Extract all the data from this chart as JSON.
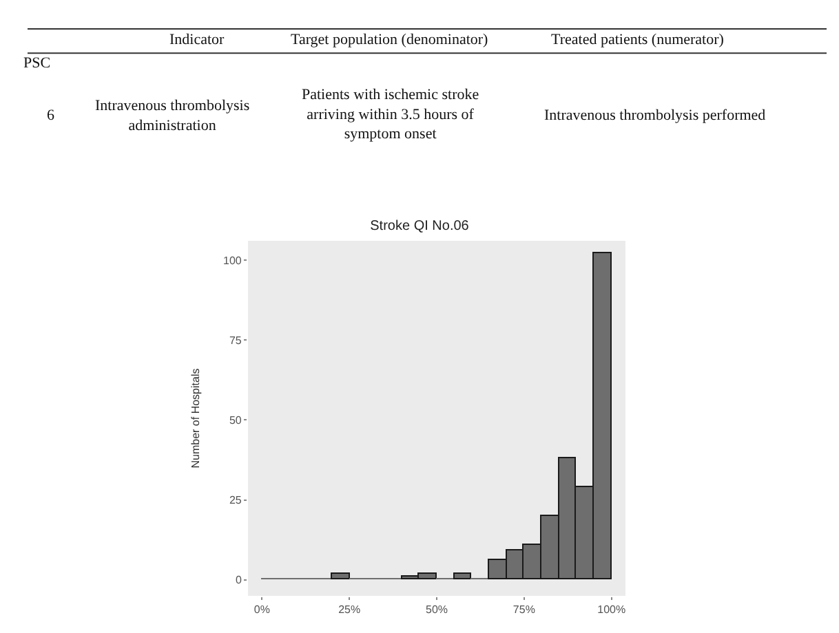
{
  "chart_data": {
    "type": "histogram",
    "title": "Stroke QI No.06",
    "ylabel": "Number of Hospitals",
    "annotations": [
      "Indicator",
      "Target population (denominator)",
      "Treated patients (numerator)",
      "PSC",
      "6",
      "Intravenous thrombolysis administration",
      "Patients with ischemic stroke arriving within 3.5 hours of symptom onset",
      "Intravenous thrombolysis performed"
    ],
    "bins": [
      0,
      5,
      10,
      15,
      20,
      25,
      30,
      35,
      40,
      45,
      50,
      55,
      60,
      65,
      70,
      75,
      80,
      85,
      90,
      95,
      100
    ],
    "values": [
      0,
      0,
      0,
      0,
      2,
      0,
      0,
      0,
      1,
      2,
      0,
      2,
      0,
      6,
      9,
      11,
      20,
      38,
      29,
      102
    ],
    "color": "#6e6e6e",
    "xlim": [
      -4,
      104
    ],
    "xticks": [
      {
        "value": 0,
        "label": "0%"
      },
      {
        "value": 25,
        "label": "25%"
      },
      {
        "value": 50,
        "label": "50%"
      },
      {
        "value": 75,
        "label": "75%"
      },
      {
        "value": 100,
        "label": "100%"
      }
    ],
    "ylim": [
      -5,
      106
    ],
    "yticks": [
      0,
      25,
      50,
      75,
      100
    ],
    "grid": false,
    "legend": false
  }
}
